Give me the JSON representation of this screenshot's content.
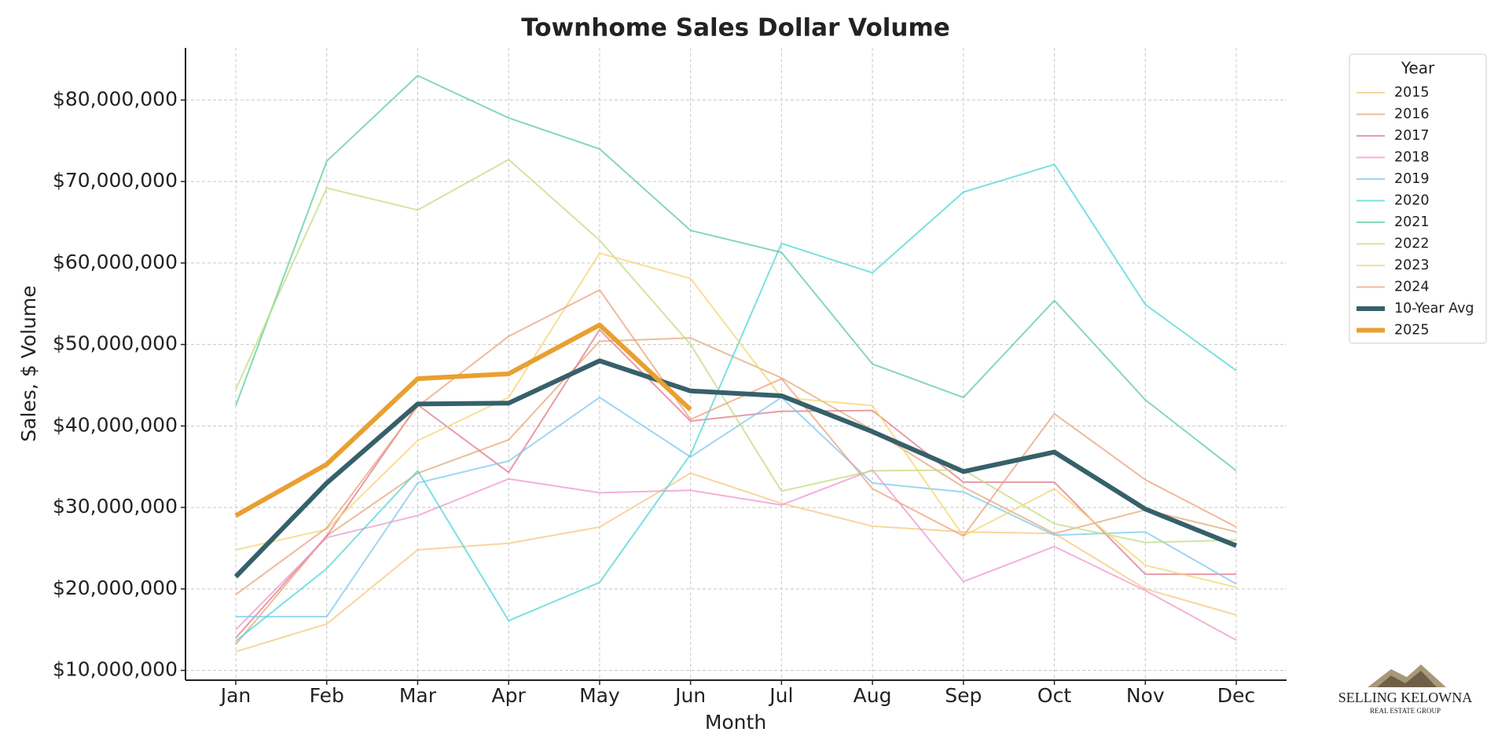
{
  "chart_data": {
    "type": "line",
    "title": "Townhome Sales Dollar Volume",
    "xlabel": "Month",
    "ylabel": "Sales, $ Volume",
    "categories": [
      "Jan",
      "Feb",
      "Mar",
      "Apr",
      "May",
      "Jun",
      "Jul",
      "Aug",
      "Sep",
      "Oct",
      "Nov",
      "Dec"
    ],
    "ylim": [
      8800000,
      86400000
    ],
    "yticks": [
      {
        "value": 10000000,
        "label": "$10,000,000"
      },
      {
        "value": 20000000,
        "label": "$20,000,000"
      },
      {
        "value": 30000000,
        "label": "$30,000,000"
      },
      {
        "value": 40000000,
        "label": "$40,000,000"
      },
      {
        "value": 50000000,
        "label": "$50,000,000"
      },
      {
        "value": 60000000,
        "label": "$60,000,000"
      },
      {
        "value": 70000000,
        "label": "$70,000,000"
      },
      {
        "value": 80000000,
        "label": "$80,000,000"
      }
    ],
    "grid": true,
    "legend_title": "Year",
    "legend_position": "outside-right",
    "series": [
      {
        "name": "2015",
        "color": "#f5c77e",
        "values": [
          12300000,
          15700000,
          24800000,
          25600000,
          27600000,
          34200000,
          30500000,
          27700000,
          27000000,
          26800000,
          20000000,
          16800000
        ]
      },
      {
        "name": "2016",
        "color": "#e3a878",
        "values": [
          13200000,
          26500000,
          34200000,
          38300000,
          50400000,
          50800000,
          45900000,
          39500000,
          32500000,
          26800000,
          29700000,
          27000000
        ]
      },
      {
        "name": "2017",
        "color": "#e07a8a",
        "values": [
          14000000,
          26500000,
          42600000,
          34300000,
          51800000,
          40600000,
          41800000,
          41900000,
          33100000,
          33100000,
          21800000,
          21800000
        ]
      },
      {
        "name": "2018",
        "color": "#ef96cf",
        "values": [
          15000000,
          26300000,
          29000000,
          33500000,
          31800000,
          32100000,
          30300000,
          34600000,
          20900000,
          25200000,
          19800000,
          13700000
        ]
      },
      {
        "name": "2019",
        "color": "#7cc8ee",
        "values": [
          16600000,
          16600000,
          33000000,
          35700000,
          43500000,
          36200000,
          43500000,
          33000000,
          31900000,
          26600000,
          27000000,
          20600000
        ]
      },
      {
        "name": "2020",
        "color": "#4fd6d6",
        "values": [
          13600000,
          22500000,
          34500000,
          16100000,
          20800000,
          36500000,
          62400000,
          58800000,
          68700000,
          72100000,
          54900000,
          46800000
        ]
      },
      {
        "name": "2021",
        "color": "#5ccc98",
        "values": [
          42500000,
          72500000,
          83000000,
          77800000,
          74000000,
          64000000,
          61300000,
          47600000,
          43500000,
          55400000,
          43200000,
          34500000
        ]
      },
      {
        "name": "2022",
        "color": "#c0dc80",
        "values": [
          44500000,
          69200000,
          66500000,
          72700000,
          62800000,
          50000000,
          32000000,
          34500000,
          34600000,
          28000000,
          25700000,
          26000000
        ]
      },
      {
        "name": "2023",
        "color": "#f5d46e",
        "values": [
          24800000,
          27300000,
          38200000,
          43500000,
          61200000,
          58100000,
          43500000,
          42500000,
          26500000,
          32300000,
          22900000,
          20200000
        ]
      },
      {
        "name": "2024",
        "color": "#eea07c",
        "values": [
          19300000,
          27500000,
          42400000,
          51000000,
          56700000,
          40800000,
          45800000,
          32300000,
          26500000,
          41500000,
          33400000,
          27600000
        ]
      },
      {
        "name": "10-Year Avg",
        "color": "#36606a",
        "values": [
          21500000,
          33000000,
          42700000,
          42800000,
          48000000,
          44300000,
          43700000,
          39300000,
          34400000,
          36800000,
          29800000,
          25300000
        ]
      },
      {
        "name": "2025",
        "color": "#e8a030",
        "values": [
          29000000,
          35300000,
          45800000,
          46400000,
          52400000,
          42000000,
          null,
          null,
          null,
          null,
          null,
          null
        ]
      }
    ]
  },
  "logo": {
    "name": "SELLING KELOWNA",
    "tagline": "REAL ESTATE GROUP"
  }
}
